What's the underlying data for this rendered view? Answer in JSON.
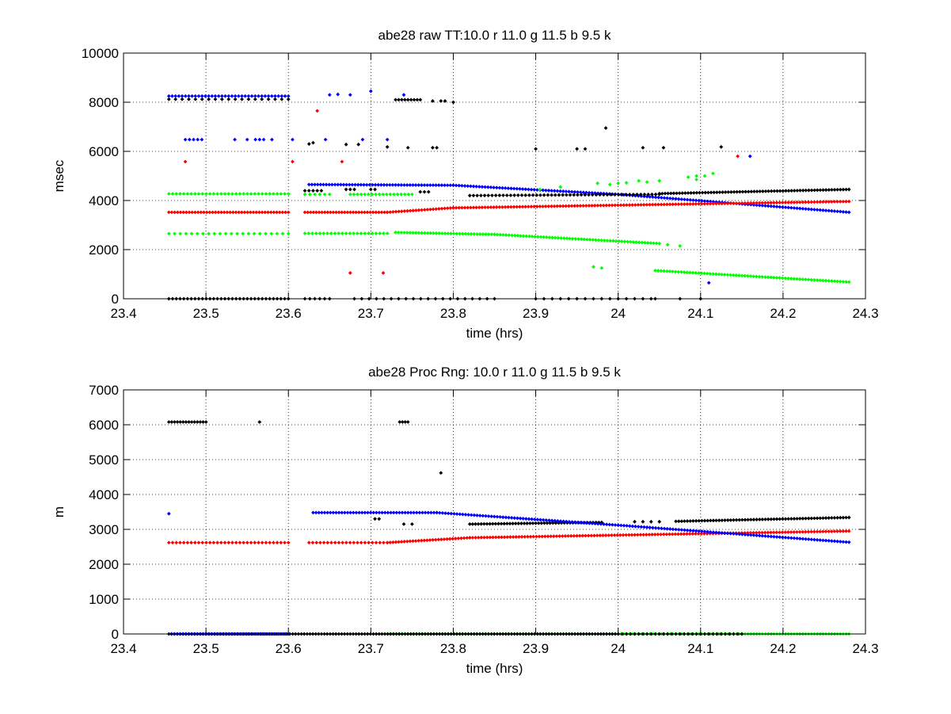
{
  "chart_data": [
    {
      "type": "scatter",
      "title": "abe28 raw TT:10.0 r  11.0 g  11.5 b  9.5 k",
      "xlabel": "time (hrs)",
      "ylabel": "msec",
      "xlim": [
        23.4,
        24.3
      ],
      "ylim": [
        0,
        10000
      ],
      "xticks": [
        "23.4",
        "23.5",
        "23.6",
        "23.7",
        "23.8",
        "23.9",
        "24",
        "24.1",
        "24.2",
        "24.3"
      ],
      "yticks": [
        "0",
        "2000",
        "4000",
        "6000",
        "8000",
        "10000"
      ],
      "grid": true,
      "series": [
        {
          "color": "#0000ff",
          "segments": [
            {
              "x0": 23.455,
              "x1": 23.6,
              "y0": 8250,
              "y1": 8250,
              "step": 0.004
            },
            {
              "x0": 23.625,
              "x1": 23.8,
              "y0": 4650,
              "y1": 4620,
              "step": 0.0035
            },
            {
              "x0": 23.8,
              "x1": 24.0,
              "y0": 4620,
              "y1": 4250,
              "step": 0.0035
            },
            {
              "x0": 24.0,
              "x1": 24.28,
              "y0": 4250,
              "y1": 3520,
              "step": 0.0035
            }
          ],
          "points": [
            [
              23.65,
              8300
            ],
            [
              23.66,
              8320
            ],
            [
              23.675,
              8300
            ],
            [
              23.7,
              8450
            ],
            [
              23.74,
              8300
            ],
            [
              23.475,
              6480
            ],
            [
              23.48,
              6480
            ],
            [
              23.485,
              6480
            ],
            [
              23.49,
              6480
            ],
            [
              23.495,
              6480
            ],
            [
              23.535,
              6480
            ],
            [
              23.55,
              6480
            ],
            [
              23.56,
              6480
            ],
            [
              23.565,
              6480
            ],
            [
              23.57,
              6480
            ],
            [
              23.58,
              6480
            ],
            [
              23.605,
              6480
            ],
            [
              23.645,
              6480
            ],
            [
              23.69,
              6480
            ],
            [
              23.72,
              6480
            ],
            [
              24.16,
              5800
            ],
            [
              24.11,
              650
            ]
          ]
        },
        {
          "color": "#000000",
          "segments": [
            {
              "x0": 23.455,
              "x1": 23.6,
              "y0": 8120,
              "y1": 8120,
              "step": 0.008
            },
            {
              "x0": 23.73,
              "x1": 23.76,
              "y0": 8100,
              "y1": 8100,
              "step": 0.004
            },
            {
              "x0": 23.62,
              "x1": 23.64,
              "y0": 4400,
              "y1": 4400,
              "step": 0.005
            },
            {
              "x0": 23.76,
              "x1": 23.77,
              "y0": 4350,
              "y1": 4350,
              "step": 0.004
            },
            {
              "x0": 23.82,
              "x1": 24.05,
              "y0": 4200,
              "y1": 4250,
              "step": 0.0045
            },
            {
              "x0": 24.05,
              "x1": 24.28,
              "y0": 4280,
              "y1": 4450,
              "step": 0.0035
            },
            {
              "x0": 23.455,
              "x1": 23.6,
              "y0": 0,
              "y1": 0,
              "step": 0.0045
            },
            {
              "x0": 23.62,
              "x1": 23.65,
              "y0": 0,
              "y1": 0,
              "step": 0.006
            },
            {
              "x0": 23.68,
              "x1": 23.85,
              "y0": 0,
              "y1": 0,
              "step": 0.009
            },
            {
              "x0": 23.9,
              "x1": 24.03,
              "y0": 0,
              "y1": 0,
              "step": 0.01
            }
          ],
          "points": [
            [
              23.775,
              8050
            ],
            [
              23.785,
              8050
            ],
            [
              23.79,
              8050
            ],
            [
              23.8,
              8000
            ],
            [
              23.625,
              6300
            ],
            [
              23.63,
              6350
            ],
            [
              23.67,
              6280
            ],
            [
              23.685,
              6280
            ],
            [
              23.72,
              6180
            ],
            [
              23.745,
              6150
            ],
            [
              23.775,
              6150
            ],
            [
              23.78,
              6150
            ],
            [
              23.9,
              6100
            ],
            [
              23.95,
              6100
            ],
            [
              23.96,
              6100
            ],
            [
              23.985,
              6950
            ],
            [
              24.03,
              6150
            ],
            [
              24.055,
              6150
            ],
            [
              24.125,
              6180
            ],
            [
              23.67,
              4450
            ],
            [
              23.675,
              4450
            ],
            [
              23.68,
              4450
            ],
            [
              23.7,
              4450
            ],
            [
              23.705,
              4450
            ],
            [
              24.04,
              0
            ],
            [
              24.045,
              0
            ],
            [
              24.075,
              0
            ],
            [
              24.1,
              0
            ]
          ]
        },
        {
          "color": "#ff0000",
          "segments": [
            {
              "x0": 23.455,
              "x1": 23.6,
              "y0": 3520,
              "y1": 3520,
              "step": 0.0035
            },
            {
              "x0": 23.62,
              "x1": 23.72,
              "y0": 3520,
              "y1": 3520,
              "step": 0.0035
            },
            {
              "x0": 23.72,
              "x1": 23.8,
              "y0": 3520,
              "y1": 3700,
              "step": 0.0035
            },
            {
              "x0": 23.8,
              "x1": 24.28,
              "y0": 3700,
              "y1": 3960,
              "step": 0.0035
            }
          ],
          "points": [
            [
              23.475,
              5580
            ],
            [
              23.605,
              5580
            ],
            [
              23.665,
              5580
            ],
            [
              23.635,
              7650
            ],
            [
              24.145,
              5800
            ],
            [
              23.675,
              1050
            ],
            [
              23.715,
              1050
            ]
          ]
        },
        {
          "color": "#00ff00",
          "segments": [
            {
              "x0": 23.455,
              "x1": 23.6,
              "y0": 4270,
              "y1": 4270,
              "step": 0.0045
            },
            {
              "x0": 23.62,
              "x1": 23.65,
              "y0": 4250,
              "y1": 4250,
              "step": 0.006
            },
            {
              "x0": 23.675,
              "x1": 23.75,
              "y0": 4250,
              "y1": 4250,
              "step": 0.0045
            },
            {
              "x0": 23.455,
              "x1": 23.6,
              "y0": 2650,
              "y1": 2650,
              "step": 0.007
            },
            {
              "x0": 23.62,
              "x1": 23.72,
              "y0": 2660,
              "y1": 2660,
              "step": 0.0045
            },
            {
              "x0": 23.73,
              "x1": 23.85,
              "y0": 2700,
              "y1": 2620,
              "step": 0.0035
            },
            {
              "x0": 23.85,
              "x1": 24.05,
              "y0": 2620,
              "y1": 2250,
              "step": 0.0035
            },
            {
              "x0": 24.045,
              "x1": 24.28,
              "y0": 1150,
              "y1": 680,
              "step": 0.0035
            }
          ],
          "points": [
            [
              24.06,
              2200
            ],
            [
              24.075,
              2150
            ],
            [
              23.97,
              1300
            ],
            [
              23.98,
              1250
            ],
            [
              23.905,
              4450
            ],
            [
              23.93,
              4550
            ],
            [
              23.975,
              4700
            ],
            [
              23.99,
              4650
            ],
            [
              24.0,
              4700
            ],
            [
              24.01,
              4720
            ],
            [
              24.025,
              4800
            ],
            [
              24.035,
              4750
            ],
            [
              24.05,
              4800
            ],
            [
              24.085,
              4950
            ],
            [
              24.095,
              5000
            ],
            [
              24.105,
              5000
            ],
            [
              24.115,
              5100
            ],
            [
              24.095,
              4850
            ]
          ]
        }
      ]
    },
    {
      "type": "scatter",
      "title": "abe28 Proc Rng: 10.0 r  11.0 g  11.5 b  9.5  k",
      "xlabel": "time (hrs)",
      "ylabel": "m",
      "xlim": [
        23.4,
        24.3
      ],
      "ylim": [
        0,
        7000
      ],
      "xticks": [
        "23.4",
        "23.5",
        "23.6",
        "23.7",
        "23.8",
        "23.9",
        "24",
        "24.1",
        "24.2",
        "24.3"
      ],
      "yticks": [
        "0",
        "1000",
        "2000",
        "3000",
        "4000",
        "5000",
        "6000",
        "7000"
      ],
      "grid": true,
      "series": [
        {
          "color": "#00ff00",
          "segments": [
            {
              "x0": 23.72,
              "x1": 24.28,
              "y0": 0,
              "y1": 0,
              "step": 0.0035
            }
          ],
          "points": []
        },
        {
          "color": "#000000",
          "segments": [
            {
              "x0": 23.455,
              "x1": 24.0,
              "y0": 0,
              "y1": 0,
              "step": 0.0035
            },
            {
              "x0": 24.0,
              "x1": 24.15,
              "y0": 0,
              "y1": 0,
              "step": 0.005
            },
            {
              "x0": 23.455,
              "x1": 23.5,
              "y0": 6080,
              "y1": 6080,
              "step": 0.0035
            },
            {
              "x0": 23.735,
              "x1": 23.745,
              "y0": 6080,
              "y1": 6080,
              "step": 0.003
            },
            {
              "x0": 23.82,
              "x1": 23.98,
              "y0": 3150,
              "y1": 3200,
              "step": 0.0035
            },
            {
              "x0": 24.07,
              "x1": 24.28,
              "y0": 3230,
              "y1": 3340,
              "step": 0.0035
            }
          ],
          "points": [
            [
              23.565,
              6080
            ],
            [
              23.785,
              4620
            ],
            [
              23.705,
              3300
            ],
            [
              23.71,
              3300
            ],
            [
              23.74,
              3150
            ],
            [
              23.75,
              3150
            ],
            [
              24.02,
              3220
            ],
            [
              24.03,
              3220
            ],
            [
              24.04,
              3220
            ],
            [
              24.05,
              3220
            ]
          ]
        },
        {
          "color": "#ff0000",
          "segments": [
            {
              "x0": 23.455,
              "x1": 23.6,
              "y0": 2620,
              "y1": 2620,
              "step": 0.0045
            },
            {
              "x0": 23.625,
              "x1": 23.72,
              "y0": 2620,
              "y1": 2620,
              "step": 0.0045
            },
            {
              "x0": 23.72,
              "x1": 23.82,
              "y0": 2620,
              "y1": 2760,
              "step": 0.0035
            },
            {
              "x0": 23.82,
              "x1": 24.28,
              "y0": 2760,
              "y1": 2950,
              "step": 0.0035
            }
          ],
          "points": []
        },
        {
          "color": "#0000ff",
          "segments": [
            {
              "x0": 23.458,
              "x1": 23.6,
              "y0": 0,
              "y1": 0,
              "step": 0.0035
            },
            {
              "x0": 23.63,
              "x1": 23.78,
              "y0": 3480,
              "y1": 3480,
              "step": 0.0035
            },
            {
              "x0": 23.78,
              "x1": 24.0,
              "y0": 3480,
              "y1": 3120,
              "step": 0.0035
            },
            {
              "x0": 24.0,
              "x1": 24.28,
              "y0": 3120,
              "y1": 2630,
              "step": 0.0035
            }
          ],
          "points": [
            [
              23.455,
              3450
            ]
          ]
        }
      ]
    }
  ]
}
